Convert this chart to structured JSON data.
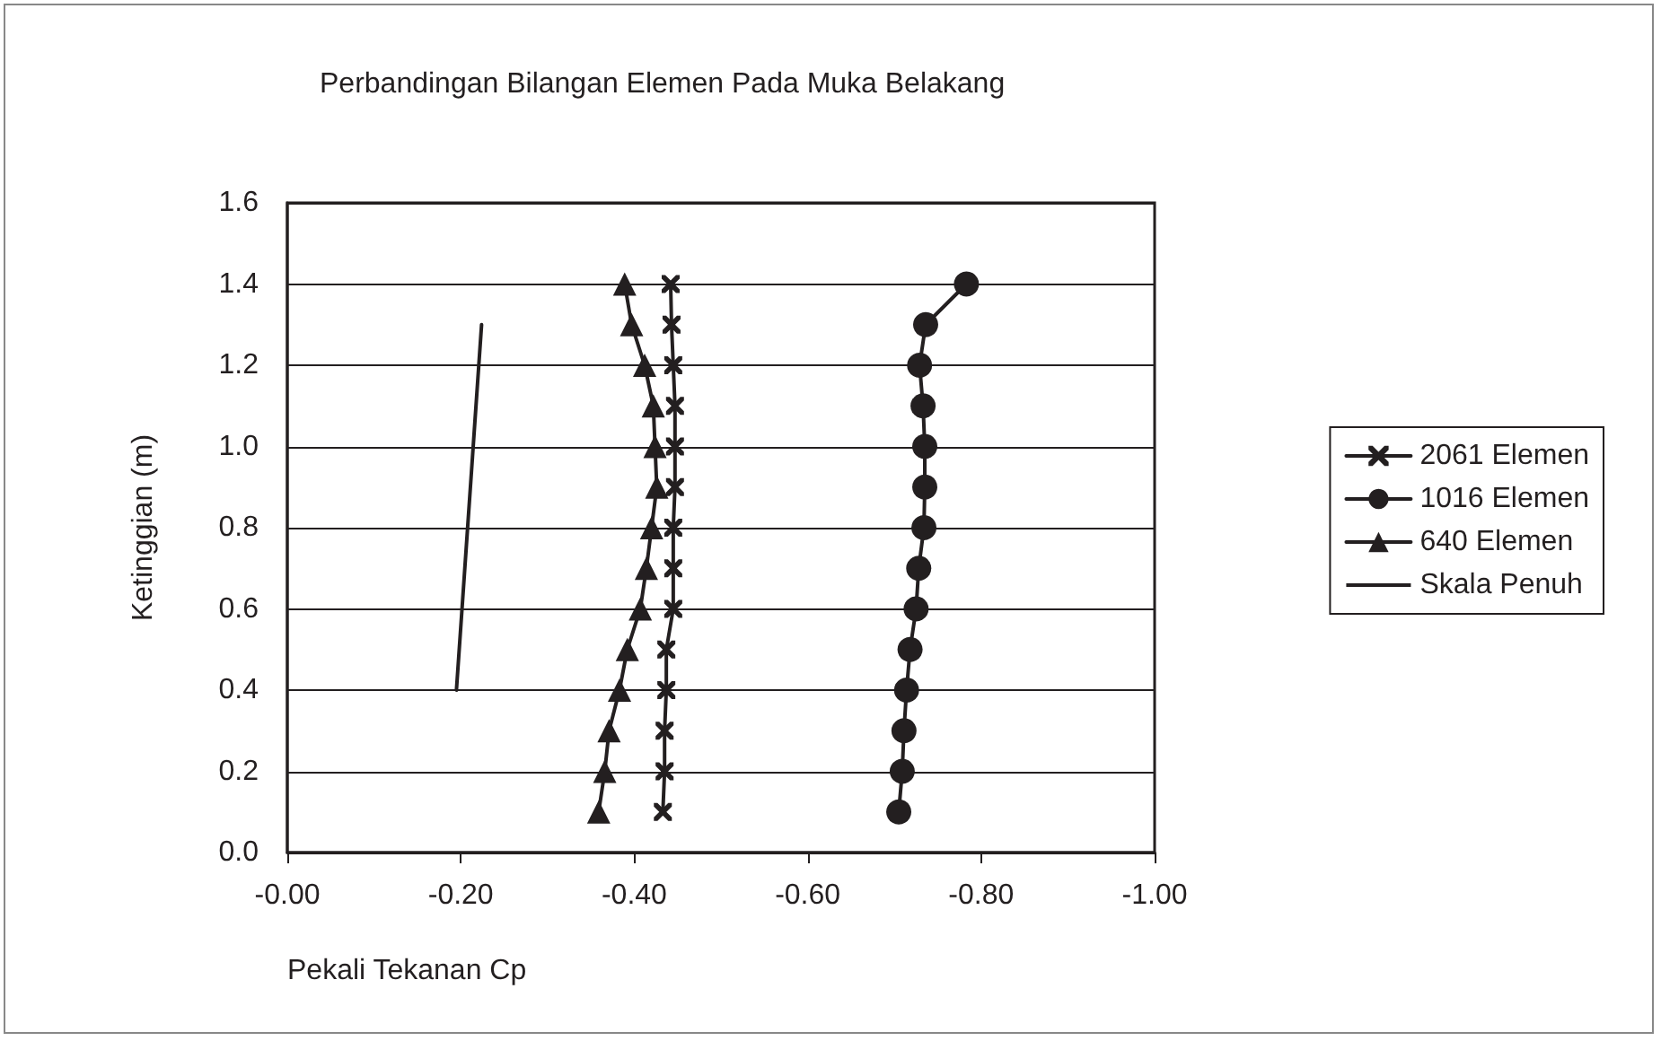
{
  "chart_data": {
    "type": "line",
    "title": "Perbandingan Bilangan Elemen Pada Muka Belakang",
    "xlabel": "Pekali Tekanan Cp",
    "ylabel": "Ketinggian (m)",
    "xlim": [
      0,
      -1
    ],
    "xticks": [
      {
        "value": 0,
        "label": "-0.00"
      },
      {
        "value": -0.2,
        "label": "-0.20"
      },
      {
        "value": -0.4,
        "label": "-0.40"
      },
      {
        "value": -0.6,
        "label": "-0.60"
      },
      {
        "value": -0.8,
        "label": "-0.80"
      },
      {
        "value": -1,
        "label": "-1.00"
      }
    ],
    "ylim": [
      0,
      1.6
    ],
    "yticks": [
      {
        "value": 0,
        "label": "0.0"
      },
      0.2,
      0.4,
      0.6,
      0.8,
      {
        "value": 1,
        "label": "1.0"
      },
      1.2,
      1.4,
      1.6
    ],
    "grid": "y",
    "legend": "right",
    "line_style": "solid",
    "series": [
      {
        "name": "2061 Elemen",
        "color": "#231f20",
        "marker": "cross",
        "x": [
          -0.433,
          -0.435,
          -0.435,
          -0.437,
          -0.437,
          -0.445,
          -0.445,
          -0.445,
          -0.447,
          -0.447,
          -0.447,
          -0.445,
          -0.443,
          -0.442
        ],
        "values": [
          0.1,
          0.2,
          0.3,
          0.4,
          0.5,
          0.6,
          0.7,
          0.8,
          0.9,
          1.0,
          1.1,
          1.2,
          1.3,
          1.4
        ]
      },
      {
        "name": "1016 Elemen",
        "color": "#231f20",
        "marker": "circle",
        "x": [
          -0.705,
          -0.709,
          -0.711,
          -0.714,
          -0.718,
          -0.725,
          -0.728,
          -0.734,
          -0.735,
          -0.735,
          -0.733,
          -0.729,
          -0.736,
          -0.783
        ],
        "values": [
          0.1,
          0.2,
          0.3,
          0.4,
          0.5,
          0.6,
          0.7,
          0.8,
          0.9,
          1.0,
          1.1,
          1.2,
          1.3,
          1.4
        ]
      },
      {
        "name": "640 Elemen",
        "color": "#231f20",
        "marker": "triangle",
        "x": [
          -0.359,
          -0.366,
          -0.371,
          -0.383,
          -0.392,
          -0.407,
          -0.414,
          -0.42,
          -0.426,
          -0.424,
          -0.422,
          -0.412,
          -0.397,
          -0.389
        ],
        "values": [
          0.1,
          0.2,
          0.3,
          0.4,
          0.5,
          0.6,
          0.7,
          0.8,
          0.9,
          1.0,
          1.1,
          1.2,
          1.3,
          1.4
        ]
      },
      {
        "name": "Skala Penuh",
        "color": "#231f20",
        "marker": "none",
        "x": [
          -0.195,
          -0.224
        ],
        "values": [
          0.4,
          1.3
        ]
      }
    ]
  }
}
